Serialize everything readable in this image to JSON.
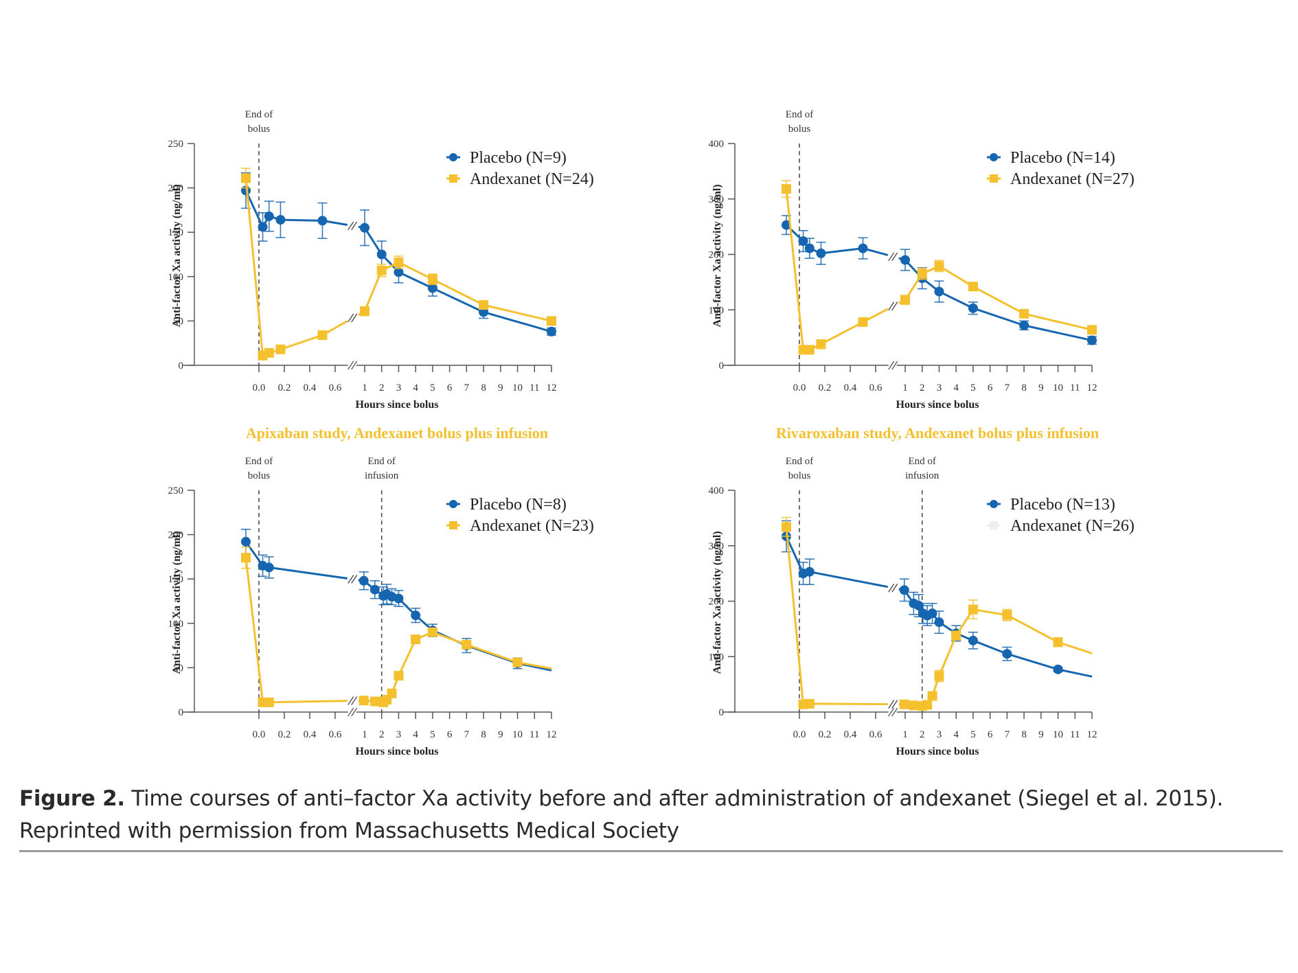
{
  "caption": {
    "label": "Figure 2.",
    "text": " Time courses of anti–factor Xa activity before and after administration of andexanet (Siegel et al. 2015).",
    "line2": "Reprinted with permission from Massachusetts Medical Society"
  },
  "colors": {
    "placebo": "#1565b0",
    "andexanet": "#f5c02e",
    "axis": "#555555",
    "title": "#f5c02e"
  },
  "chart_data": [
    {
      "id": "apixaban-bolus",
      "type": "line",
      "title": "",
      "xlabel": "Hours since bolus",
      "ylabel": "Anti-factor Xa activity (ng/ml)",
      "ylim": [
        0,
        250
      ],
      "yticks": [
        0,
        50,
        100,
        150,
        200,
        250
      ],
      "xticks_early": [
        "0.0",
        "0.2",
        "0.4",
        "0.6"
      ],
      "xticks_late": [
        "1",
        "2",
        "3",
        "4",
        "5",
        "6",
        "7",
        "8",
        "9",
        "10",
        "11",
        "12"
      ],
      "axis_break": true,
      "grid": false,
      "legend_position": "top-right",
      "annotations": [
        {
          "text": "End of\nbolus",
          "x": 0
        }
      ],
      "series": [
        {
          "name": "Placebo (N=9)",
          "key": "placebo",
          "marker": "circle",
          "points": [
            [
              -0.1,
              197,
              20
            ],
            [
              0.03,
              156,
              16
            ],
            [
              0.08,
              168,
              17
            ],
            [
              0.17,
              164,
              20
            ],
            [
              0.5,
              163,
              20
            ],
            [
              1,
              155,
              20
            ],
            [
              2,
              125,
              15
            ],
            [
              3,
              105,
              12
            ],
            [
              5,
              87,
              9
            ],
            [
              8,
              60,
              7
            ],
            [
              12,
              38,
              4
            ]
          ]
        },
        {
          "name": "Andexanet (N=24)",
          "key": "andexanet",
          "marker": "square",
          "points": [
            [
              -0.1,
              211,
              11
            ],
            [
              0.03,
              11,
              2
            ],
            [
              0.08,
              14,
              2
            ],
            [
              0.17,
              18,
              2
            ],
            [
              0.5,
              34,
              4
            ],
            [
              1,
              61,
              5
            ],
            [
              2,
              107,
              7
            ],
            [
              3,
              116,
              7
            ],
            [
              5,
              97,
              6
            ],
            [
              8,
              68,
              4
            ],
            [
              12,
              50,
              3
            ]
          ]
        }
      ]
    },
    {
      "id": "rivaroxaban-bolus",
      "type": "line",
      "title": "",
      "xlabel": "Hours since bolus",
      "ylabel": "Anti-factor Xa activity (ng/ml)",
      "ylim": [
        0,
        400
      ],
      "yticks": [
        0,
        100,
        200,
        300,
        400
      ],
      "xticks_early": [
        "0.0",
        "0.2",
        "0.4",
        "0.6"
      ],
      "xticks_late": [
        "1",
        "2",
        "3",
        "4",
        "5",
        "6",
        "7",
        "8",
        "9",
        "10",
        "11",
        "12"
      ],
      "axis_break": true,
      "grid": false,
      "legend_position": "top-right",
      "annotations": [
        {
          "text": "End of\nbolus",
          "x": 0
        }
      ],
      "series": [
        {
          "name": "Placebo (N=14)",
          "key": "placebo",
          "marker": "circle",
          "points": [
            [
              -0.1,
              253,
              17
            ],
            [
              0.03,
              224,
              19
            ],
            [
              0.08,
              211,
              18
            ],
            [
              0.17,
              202,
              20
            ],
            [
              0.5,
              211,
              19
            ],
            [
              1,
              190,
              19
            ],
            [
              2,
              157,
              19
            ],
            [
              3,
              133,
              19
            ],
            [
              5,
              103,
              11
            ],
            [
              8,
              72,
              8
            ],
            [
              12,
              45,
              7
            ]
          ]
        },
        {
          "name": "Andexanet (N=27)",
          "key": "andexanet",
          "marker": "square",
          "points": [
            [
              -0.1,
              318,
              15
            ],
            [
              0.03,
              28,
              6
            ],
            [
              0.08,
              28,
              6
            ],
            [
              0.17,
              38,
              8
            ],
            [
              0.5,
              78,
              4
            ],
            [
              1,
              118,
              8
            ],
            [
              2,
              165,
              10
            ],
            [
              3,
              179,
              10
            ],
            [
              5,
              142,
              5
            ],
            [
              8,
              93,
              5
            ],
            [
              12,
              64,
              5
            ]
          ]
        }
      ]
    },
    {
      "id": "apixaban-infusion",
      "type": "line",
      "title": "Apixaban study, Andexanet bolus plus infusion",
      "xlabel": "Hours since bolus",
      "ylabel": "Anti-factor Xa activity (ng/ml)",
      "ylim": [
        0,
        250
      ],
      "yticks": [
        0,
        50,
        100,
        150,
        200,
        250
      ],
      "xticks_early": [
        "0.0",
        "0.2",
        "0.4",
        "0.6"
      ],
      "xticks_late": [
        "1",
        "2",
        "3",
        "4",
        "5",
        "6",
        "7",
        "8",
        "9",
        "10",
        "11",
        "12"
      ],
      "axis_break": true,
      "grid": false,
      "legend_position": "top-right",
      "annotations": [
        {
          "text": "End of\nbolus",
          "x": 0
        },
        {
          "text": "End of\ninfusion",
          "x": 2
        }
      ],
      "series": [
        {
          "name": "Placebo (N=8)",
          "key": "placebo",
          "marker": "circle",
          "points": [
            [
              -0.1,
              192,
              14
            ],
            [
              0.03,
              165,
              12
            ],
            [
              0.08,
              163,
              12
            ],
            [
              0.95,
              148,
              10
            ],
            [
              1.6,
              138,
              10
            ],
            [
              2.1,
              131,
              10
            ],
            [
              2.3,
              133,
              11
            ],
            [
              2.6,
              130,
              9
            ],
            [
              3,
              128,
              9
            ],
            [
              4,
              109,
              8
            ],
            [
              5,
              92,
              7
            ],
            [
              7,
              75,
              8
            ],
            [
              10,
              55,
              6
            ],
            [
              12,
              47,
              0
            ]
          ]
        },
        {
          "name": "Andexanet (N=23)",
          "key": "andexanet",
          "marker": "square",
          "points": [
            [
              -0.1,
              174,
              12
            ],
            [
              0.03,
              11,
              2
            ],
            [
              0.08,
              11,
              2
            ],
            [
              0.95,
              13,
              2
            ],
            [
              1.6,
              12,
              2
            ],
            [
              1.9,
              12,
              2
            ],
            [
              2.1,
              11,
              2
            ],
            [
              2.3,
              14,
              2
            ],
            [
              2.6,
              21,
              2
            ],
            [
              3,
              41,
              3
            ],
            [
              4,
              82,
              3
            ],
            [
              5,
              90,
              3
            ],
            [
              7,
              76,
              3
            ],
            [
              10,
              56,
              3
            ],
            [
              12,
              49,
              0
            ]
          ]
        }
      ]
    },
    {
      "id": "rivaroxaban-infusion",
      "type": "line",
      "title": "Rivaroxaban study, Andexanet bolus plus infusion",
      "xlabel": "Hours since bolus",
      "ylabel": "Anti-factor Xa activity (ng/ml)",
      "ylim": [
        0,
        400
      ],
      "yticks": [
        0,
        100,
        200,
        300,
        400
      ],
      "xticks_early": [
        "0.0",
        "0.2",
        "0.4",
        "0.6"
      ],
      "xticks_late": [
        "1",
        "2",
        "3",
        "4",
        "5",
        "6",
        "7",
        "8",
        "9",
        "10",
        "11",
        "12"
      ],
      "axis_break": true,
      "grid": false,
      "legend_position": "top-right",
      "annotations": [
        {
          "text": "End of\nbolus",
          "x": 0
        },
        {
          "text": "End of\ninfusion",
          "x": 2
        }
      ],
      "series": [
        {
          "name": "Placebo (N=13)",
          "key": "placebo",
          "marker": "circle",
          "points": [
            [
              -0.1,
              317,
              28
            ],
            [
              0.03,
              250,
              20
            ],
            [
              0.08,
              253,
              23
            ],
            [
              0.95,
              220,
              20
            ],
            [
              1.5,
              196,
              20
            ],
            [
              1.8,
              192,
              20
            ],
            [
              2.05,
              178,
              18
            ],
            [
              2.3,
              174,
              18
            ],
            [
              2.6,
              178,
              18
            ],
            [
              3,
              162,
              20
            ],
            [
              4,
              142,
              14
            ],
            [
              5,
              129,
              15
            ],
            [
              7,
              105,
              12
            ],
            [
              10,
              77,
              4
            ],
            [
              12,
              64,
              0
            ]
          ]
        },
        {
          "name": "Andexanet (N=26)",
          "key": "andexanet",
          "marker": "square",
          "points": [
            [
              -0.1,
              334,
              17
            ],
            [
              0.03,
              14,
              2
            ],
            [
              0.08,
              15,
              2
            ],
            [
              0.95,
              14,
              2
            ],
            [
              1.5,
              12,
              2
            ],
            [
              2,
              11,
              2
            ],
            [
              2.3,
              13,
              2
            ],
            [
              2.6,
              29,
              3
            ],
            [
              3,
              65,
              10
            ],
            [
              4,
              138,
              8
            ],
            [
              5,
              185,
              17
            ],
            [
              7,
              175,
              10
            ],
            [
              10,
              126,
              8
            ],
            [
              12,
              106,
              0
            ]
          ]
        }
      ]
    }
  ]
}
